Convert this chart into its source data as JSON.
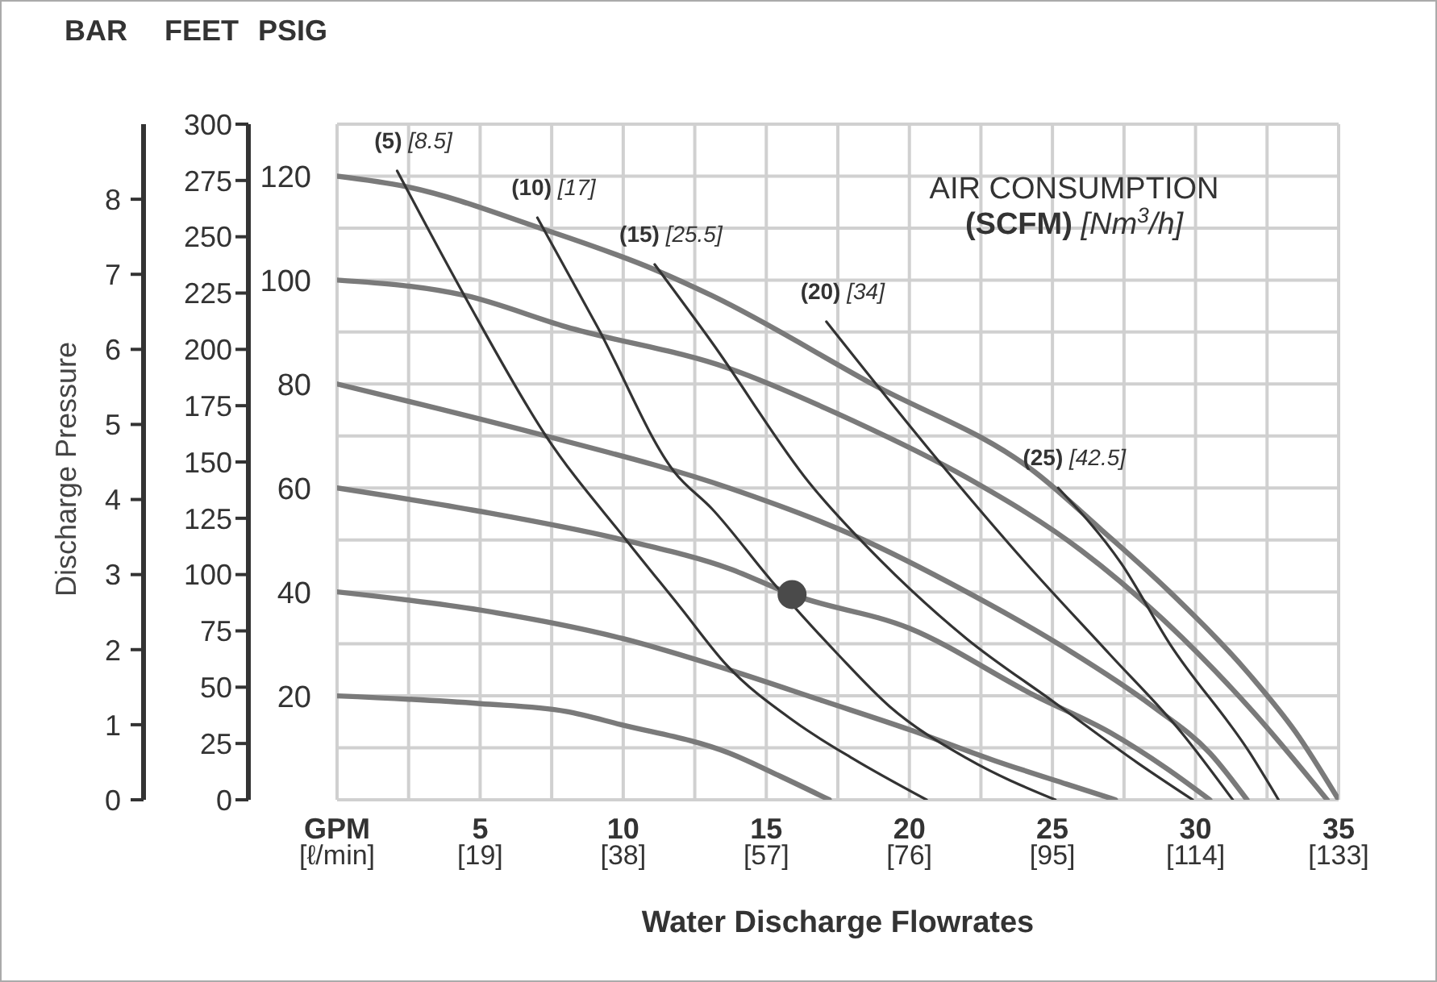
{
  "chart_data": {
    "type": "line",
    "xlabel": "Water Discharge Flowrates",
    "y3label": "Discharge Pressure",
    "annotations": [
      "BAR",
      "FEET",
      "PSIG",
      "AIR CONSUMPTION\n(SCFM) [Nm$^{3}$/h]"
    ],
    "xlim": [
      0,
      35
    ],
    "xticks": [
      {
        "value": 0,
        "label": "GPM"
      },
      {
        "value": 2.5,
        "label": null
      },
      5,
      {
        "value": 7.5,
        "label": null
      },
      10,
      {
        "value": 12.5,
        "label": null
      },
      15,
      {
        "value": 17.5,
        "label": null
      },
      20,
      {
        "value": 22.5,
        "label": null
      },
      25,
      {
        "value": 27.5,
        "label": null
      },
      30,
      {
        "value": 32.5,
        "label": null
      },
      35
    ],
    "x2lim": [
      0,
      133
    ],
    "x2ticks": [
      {
        "value": 0,
        "label": "[ℓ/min]"
      },
      {
        "value": 19,
        "label": "[19]"
      },
      {
        "value": 38,
        "label": "[38]"
      },
      {
        "value": 57,
        "label": "[57]"
      },
      {
        "value": 76,
        "label": "[76]"
      },
      {
        "value": 95,
        "label": "[95]"
      },
      {
        "value": 114,
        "label": "[114]"
      },
      {
        "value": 133,
        "label": "[133]"
      }
    ],
    "ylim": [
      0,
      130
    ],
    "yticks": [
      {
        "value": 0,
        "label": null
      },
      {
        "value": 10,
        "label": null
      },
      20,
      {
        "value": 30,
        "label": null
      },
      40,
      {
        "value": 50,
        "label": null
      },
      60,
      {
        "value": 70,
        "label": null
      },
      80,
      {
        "value": 90,
        "label": null
      },
      100,
      {
        "value": 110,
        "label": null
      },
      120,
      {
        "value": 130,
        "label": null
      }
    ],
    "y2lim": [
      0,
      300
    ],
    "y2ticks": [
      0,
      25,
      50,
      75,
      100,
      125,
      150,
      175,
      200,
      225,
      250,
      275,
      300
    ],
    "y3lim": [
      0,
      9
    ],
    "y3ticks": [
      0,
      1,
      2,
      3,
      4,
      5,
      6,
      7,
      8
    ],
    "grid": true,
    "series": [
      {
        "color": "#7a7a7a",
        "x": [
          0,
          2.4,
          7.1,
          11.1,
          13.1,
          18.7,
          24.4,
          26.7,
          29.1,
          31.9,
          33.5,
          35
        ],
        "values": [
          120,
          118,
          110,
          102,
          97,
          80,
          63,
          52,
          40,
          24,
          13,
          0
        ]
      },
      {
        "color": "#7a7a7a",
        "x": [
          0,
          4.5,
          8,
          13.7,
          18,
          22,
          26,
          29,
          32,
          34.6
        ],
        "values": [
          100,
          97,
          91,
          83,
          73,
          62,
          48,
          34,
          17,
          0
        ]
      },
      {
        "color": "#7a7a7a",
        "x": [
          0,
          3,
          7.3,
          13.7,
          18,
          22,
          25.5,
          28.5,
          30.5,
          31.8
        ],
        "values": [
          80,
          76,
          70,
          60,
          51,
          40,
          29,
          18,
          9,
          0
        ]
      },
      {
        "color": "#7a7a7a",
        "x": [
          0,
          5,
          10,
          13.7,
          15.9,
          20,
          24.4,
          27,
          29,
          30.5
        ],
        "values": [
          60,
          55.5,
          50,
          44.5,
          39.5,
          33,
          20,
          13,
          6,
          0
        ]
      },
      {
        "color": "#7a7a7a",
        "x": [
          0,
          5,
          10,
          13.7,
          17,
          20,
          23,
          25.5,
          27.2
        ],
        "values": [
          40,
          36.5,
          31,
          25,
          19,
          13.5,
          7.5,
          3,
          0
        ]
      },
      {
        "color": "#7a7a7a",
        "x": [
          0,
          5,
          8,
          9.9,
          13.7,
          15.5,
          17.2
        ],
        "values": [
          20,
          18.5,
          17,
          14.5,
          9,
          4.5,
          0
        ]
      },
      {
        "name": "(5) [8.5]",
        "color": "#333333",
        "x": [
          2.1,
          4.5,
          7.3,
          10.1,
          12,
          13.6,
          16,
          18,
          20.6
        ],
        "values": [
          121,
          96.5,
          70,
          50,
          37,
          26,
          15,
          8,
          0
        ]
      },
      {
        "name": "(10) [17]",
        "color": "#333333",
        "x": [
          7,
          9.1,
          11.8,
          13.1,
          15.2,
          17.5,
          19.3,
          22,
          25.1
        ],
        "values": [
          112,
          91,
          63,
          56,
          42,
          28,
          18,
          8,
          0
        ]
      },
      {
        "name": "(15) [25.5]",
        "color": "#333333",
        "x": [
          11.1,
          13.1,
          16.5,
          19,
          22,
          25,
          28,
          29.9
        ],
        "values": [
          103,
          88,
          61,
          46,
          31,
          19,
          7,
          0
        ]
      },
      {
        "name": "(20) [34]",
        "color": "#333333",
        "x": [
          17.1,
          21.2,
          24,
          27,
          29.5,
          31.3
        ],
        "values": [
          92,
          64,
          46,
          28,
          13,
          0
        ]
      },
      {
        "name": "(25) [42.5]",
        "color": "#333333",
        "x": [
          25.2,
          27.4,
          29.1,
          31.9,
          32.9
        ],
        "values": [
          60,
          45.5,
          30,
          9,
          0
        ]
      },
      {
        "type": "scatter",
        "color": "#4a4a4a",
        "marker": "circle",
        "x": [
          15.9
        ],
        "values": [
          39.5
        ]
      }
    ]
  }
}
